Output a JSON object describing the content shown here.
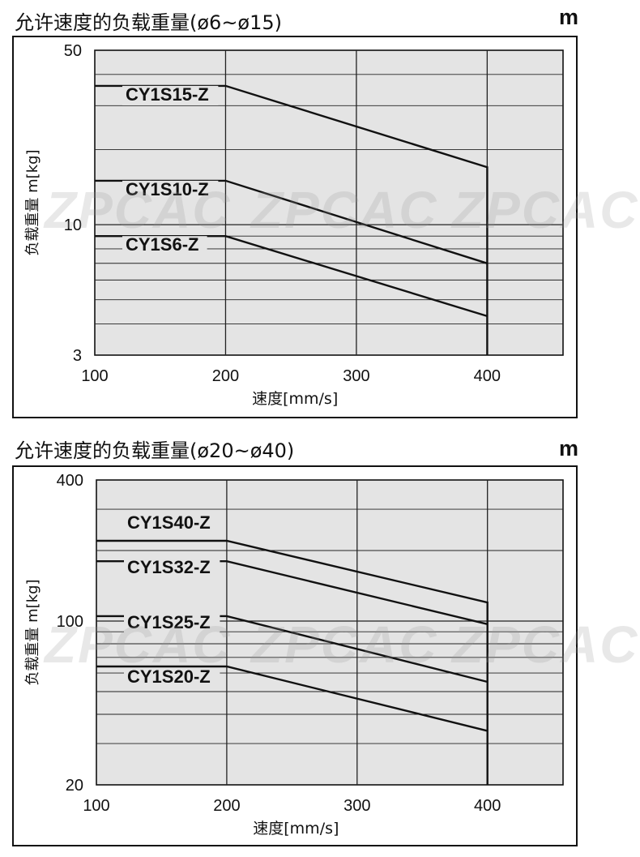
{
  "charts": [
    {
      "title": "允许速度的负载重量(ø6~ø15)",
      "unit_mark": "m",
      "watermark": "ZPCAC",
      "chart_data": {
        "type": "line",
        "xlabel": "速度[mm/s]",
        "ylabel": "负载重量 m[kg]",
        "xscale": "linear",
        "yscale": "log",
        "xlim": [
          100,
          400
        ],
        "ylim": [
          3,
          50
        ],
        "x_ticks": [
          100,
          200,
          300,
          400
        ],
        "y_tick_labels": [
          50,
          10,
          3
        ],
        "grid": true,
        "series": [
          {
            "name": "CY1S15-Z",
            "x": [
              100,
              200,
              400,
              400
            ],
            "y": [
              36,
              36,
              17,
              3
            ]
          },
          {
            "name": "CY1S10-Z",
            "x": [
              100,
              200,
              400
            ],
            "y": [
              15,
              15,
              7
            ]
          },
          {
            "name": "CY1S6-Z",
            "x": [
              100,
              200,
              400
            ],
            "y": [
              9,
              9,
              4.3
            ]
          }
        ]
      }
    },
    {
      "title": "允许速度的负载重量(ø20~ø40)",
      "unit_mark": "m",
      "watermark": "ZPCAC",
      "chart_data": {
        "type": "line",
        "xlabel": "速度[mm/s]",
        "ylabel": "负载重量 m[kg]",
        "xscale": "linear",
        "yscale": "log",
        "xlim": [
          100,
          400
        ],
        "ylim": [
          20,
          400
        ],
        "x_ticks": [
          100,
          200,
          300,
          400
        ],
        "y_tick_labels": [
          400,
          100,
          20
        ],
        "grid": true,
        "series": [
          {
            "name": "CY1S40-Z",
            "x": [
              100,
              200,
              400,
              400
            ],
            "y": [
              220,
              220,
              120,
              20
            ]
          },
          {
            "name": "CY1S32-Z",
            "x": [
              100,
              200,
              400
            ],
            "y": [
              180,
              180,
              97
            ]
          },
          {
            "name": "CY1S25-Z",
            "x": [
              100,
              200,
              400
            ],
            "y": [
              105,
              105,
              55
            ]
          },
          {
            "name": "CY1S20-Z",
            "x": [
              100,
              200,
              400
            ],
            "y": [
              64,
              64,
              34
            ]
          }
        ]
      }
    }
  ]
}
